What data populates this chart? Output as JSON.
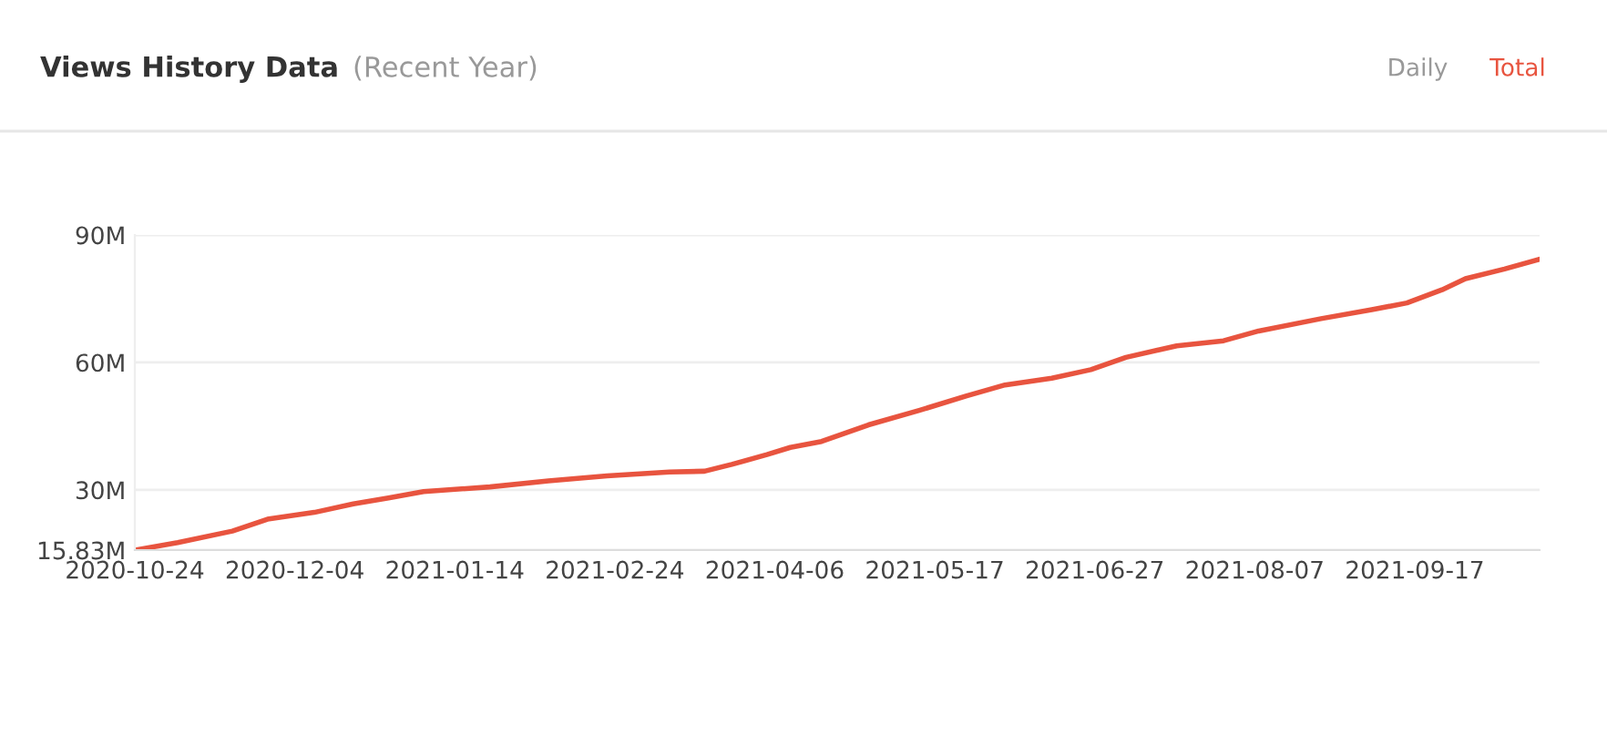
{
  "chart_data": {
    "type": "line",
    "title": "Views History Data",
    "subtitle": "(Recent Year)",
    "annotations": [
      "Daily",
      "Total"
    ],
    "x": [
      "2020-10-24",
      "2020-11-04",
      "2020-11-18",
      "2020-11-27",
      "2020-12-09",
      "2020-12-19",
      "2020-12-28",
      "2021-01-06",
      "2021-01-23",
      "2021-02-07",
      "2021-02-22",
      "2021-03-10",
      "2021-03-19",
      "2021-03-26",
      "2021-04-04",
      "2021-04-10",
      "2021-04-18",
      "2021-04-30",
      "2021-05-13",
      "2021-05-25",
      "2021-06-04",
      "2021-06-16",
      "2021-06-26",
      "2021-07-05",
      "2021-07-18",
      "2021-07-30",
      "2021-08-08",
      "2021-08-24",
      "2021-09-06",
      "2021-09-15",
      "2021-09-24",
      "2021-09-30",
      "2021-10-10",
      "2021-10-19"
    ],
    "series": [
      {
        "color": "#e8543f",
        "values": [
          15.83,
          17.6,
          20.3,
          23.1,
          24.7,
          26.7,
          28.1,
          29.6,
          30.7,
          32.1,
          33.3,
          34.2,
          34.4,
          36.0,
          38.3,
          40.0,
          41.4,
          45.3,
          48.7,
          52.1,
          54.7,
          56.3,
          58.3,
          61.2,
          63.9,
          65.1,
          67.4,
          70.3,
          72.4,
          74.0,
          77.1,
          79.7,
          82.0,
          84.3
        ]
      }
    ],
    "xlim": [
      "2020-10-24",
      "2021-10-19"
    ],
    "xticks": [
      "2020-10-24",
      "2020-12-04",
      "2021-01-14",
      "2021-02-24",
      "2021-04-06",
      "2021-05-17",
      "2021-06-27",
      "2021-08-07",
      "2021-09-17"
    ],
    "ylim": [
      15.83,
      90
    ],
    "yticks": [
      {
        "value": 15.83,
        "label": "15.83M"
      },
      {
        "value": 30,
        "label": "30M"
      },
      {
        "value": 60,
        "label": "60M"
      },
      {
        "value": 90,
        "label": "90M"
      }
    ],
    "grid": "y",
    "marker": "none",
    "line_style": "solid"
  }
}
